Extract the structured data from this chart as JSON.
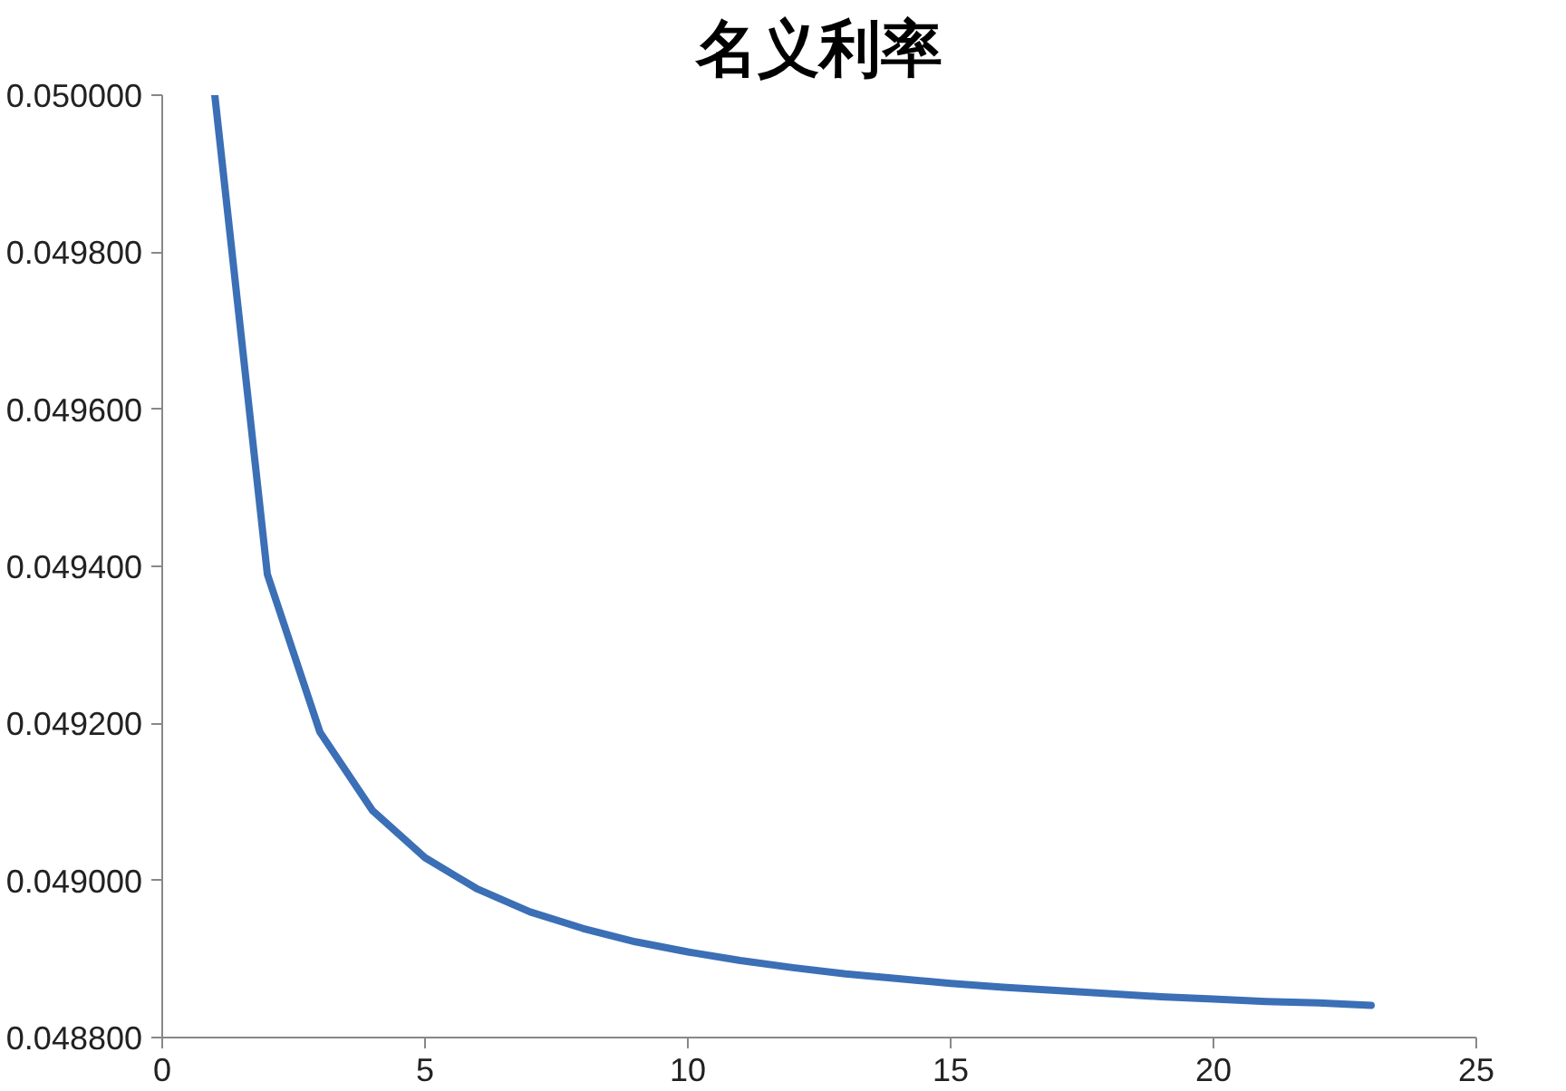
{
  "chart_data": {
    "type": "line",
    "title": "名义利率",
    "x": [
      1,
      2,
      3,
      4,
      5,
      6,
      7,
      8,
      9,
      10,
      11,
      12,
      13,
      14,
      15,
      16,
      17,
      18,
      19,
      20,
      21,
      22,
      23
    ],
    "series": [
      {
        "color": "#3b6fb6",
        "values": [
          0.05,
          0.04939,
          0.049189,
          0.049089,
          0.049029,
          0.048989,
          0.04896,
          0.048939,
          0.048922,
          0.048909,
          0.048898,
          0.048889,
          0.048881,
          0.048875,
          0.048869,
          0.048864,
          0.04886,
          0.048856,
          0.048852,
          0.048849,
          0.048846,
          0.048844,
          0.048841
        ]
      }
    ],
    "xlim": [
      0,
      25
    ],
    "xticks": [
      0,
      5,
      10,
      15,
      20,
      25
    ],
    "ylim": [
      0.0488,
      0.05
    ],
    "yticks": [
      {
        "value": 0.0488,
        "label": "0.048800"
      },
      {
        "value": 0.049,
        "label": "0.049000"
      },
      {
        "value": 0.0492,
        "label": "0.049200"
      },
      {
        "value": 0.0494,
        "label": "0.049400"
      },
      {
        "value": 0.0496,
        "label": "0.049600"
      },
      {
        "value": 0.0498,
        "label": "0.049800"
      },
      {
        "value": 0.05,
        "label": "0.050000"
      }
    ],
    "grid": false,
    "marker": "none",
    "line_style": "solid"
  }
}
